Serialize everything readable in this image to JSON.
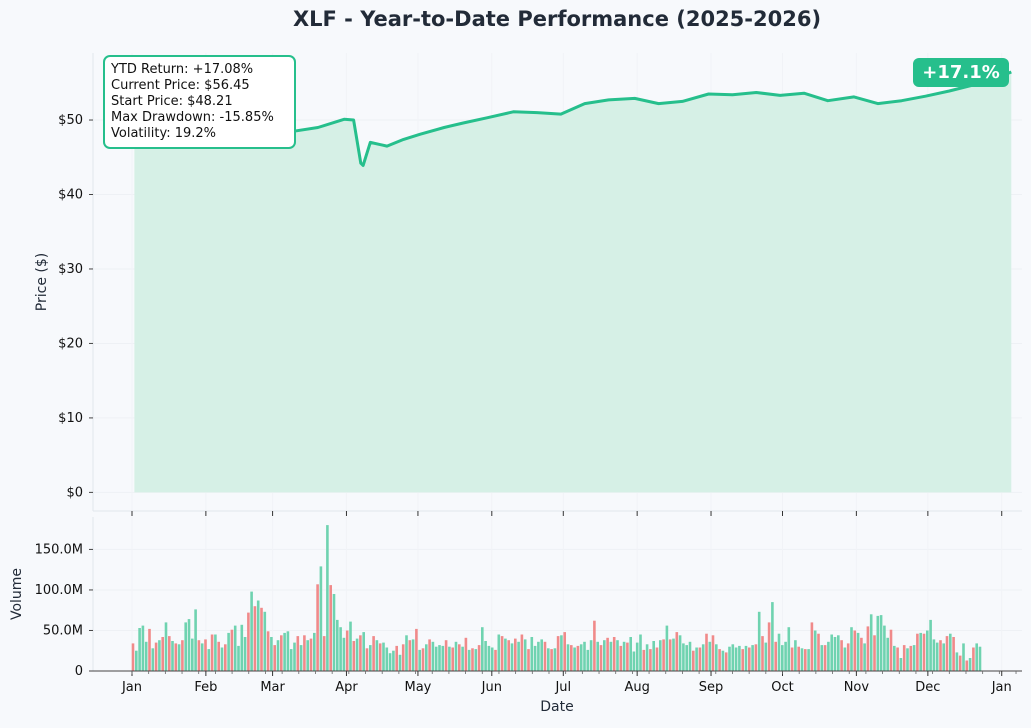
{
  "title": "XLF - Year-to-Date Performance (2025-2026)",
  "badge": "+17.1%",
  "stats": {
    "ytd_return": "YTD Return: +17.08%",
    "current_price": "Current Price: $56.45",
    "start_price": "Start Price: $48.21",
    "max_drawdown": "Max Drawdown: -15.85%",
    "volatility": "Volatility: 19.2%"
  },
  "colors": {
    "line": "#26bf8c",
    "fill": "#d6f0e6",
    "up": "#6fd3b0",
    "down": "#f08a8a",
    "text": "#222b38",
    "background": "#f7f9fc"
  },
  "chart_data": [
    {
      "type": "area",
      "title": "XLF - Year-to-Date Performance (2025-2026)",
      "xlabel": "",
      "ylabel": "Price ($)",
      "ylim": [
        -2.5,
        59
      ],
      "yticks": [
        0,
        10,
        20,
        30,
        40,
        50
      ],
      "ytick_labels": [
        "$0",
        "$10",
        "$20",
        "$30",
        "$40",
        "$50"
      ],
      "grid": true,
      "series": [
        {
          "x": [
            "2025-01-02",
            "2025-01-10",
            "2025-01-20",
            "2025-01-31",
            "2025-02-10",
            "2025-02-20",
            "2025-02-28",
            "2025-03-10",
            "2025-03-20",
            "2025-03-31",
            "2025-04-04",
            "2025-04-07",
            "2025-04-08",
            "2025-04-11",
            "2025-04-18",
            "2025-04-25",
            "2025-05-02",
            "2025-05-12",
            "2025-05-20",
            "2025-05-30",
            "2025-06-10",
            "2025-06-20",
            "2025-06-30",
            "2025-07-10",
            "2025-07-20",
            "2025-07-31",
            "2025-08-10",
            "2025-08-20",
            "2025-08-31",
            "2025-09-10",
            "2025-09-20",
            "2025-09-30",
            "2025-10-10",
            "2025-10-20",
            "2025-10-31",
            "2025-11-10",
            "2025-11-20",
            "2025-11-30",
            "2025-12-10",
            "2025-12-20",
            "2025-12-31",
            "2026-01-05"
          ],
          "values": [
            48.2,
            49.0,
            50.5,
            51.2,
            51.8,
            50.6,
            51.9,
            48.5,
            49.0,
            50.1,
            50.0,
            44.2,
            43.9,
            47.0,
            46.5,
            47.4,
            48.1,
            49.0,
            49.6,
            50.3,
            51.1,
            51.0,
            50.8,
            52.2,
            52.7,
            52.9,
            52.2,
            52.5,
            53.5,
            53.4,
            53.7,
            53.3,
            53.6,
            52.6,
            53.1,
            52.2,
            52.6,
            53.2,
            53.9,
            54.7,
            55.8,
            56.45
          ]
        }
      ]
    },
    {
      "type": "bar",
      "xlabel": "Date",
      "ylabel": "Volume",
      "ylim": [
        0,
        190
      ],
      "yticks": [
        0,
        50,
        100,
        150
      ],
      "ytick_labels": [
        "0",
        "50.0M",
        "100.0M",
        "150.0M"
      ],
      "x_ticks": [
        "Jan",
        "Feb",
        "Mar",
        "Apr",
        "May",
        "Jun",
        "Jul",
        "Aug",
        "Sep",
        "Oct",
        "Nov",
        "Dec",
        "Jan"
      ],
      "values_millions": [
        34,
        25,
        53,
        56,
        36,
        52,
        28,
        35,
        38,
        42,
        60,
        43,
        37,
        34,
        33,
        38,
        60,
        64,
        40,
        76,
        38,
        34,
        39,
        27,
        45,
        45,
        36,
        29,
        33,
        47,
        51,
        56,
        31,
        57,
        42,
        72,
        98,
        80,
        87,
        78,
        73,
        49,
        42,
        32,
        38,
        44,
        47,
        49,
        27,
        35,
        43,
        32,
        44,
        38,
        40,
        47,
        107,
        129,
        43,
        180,
        106,
        95,
        63,
        54,
        41,
        50,
        61,
        37,
        40,
        44,
        48,
        28,
        32,
        43,
        38,
        34,
        35,
        29,
        22,
        25,
        31,
        20,
        33,
        44,
        38,
        39,
        52,
        26,
        28,
        33,
        39,
        36,
        30,
        32,
        31,
        38,
        30,
        29,
        36,
        33,
        30,
        41,
        26,
        28,
        27,
        32,
        54,
        37,
        31,
        29,
        26,
        45,
        43,
        40,
        38,
        34,
        40,
        36,
        45,
        39,
        27,
        42,
        31,
        36,
        39,
        36,
        28,
        27,
        28,
        43,
        44,
        48,
        33,
        32,
        29,
        31,
        33,
        36,
        26,
        38,
        62,
        36,
        32,
        38,
        41,
        36,
        42,
        38,
        31,
        36,
        35,
        42,
        24,
        35,
        45,
        26,
        33,
        27,
        37,
        29,
        38,
        39,
        56,
        39,
        40,
        48,
        44,
        34,
        32,
        36,
        25,
        29,
        29,
        33,
        46,
        36,
        44,
        33,
        27,
        25,
        23,
        30,
        33,
        29,
        31,
        27,
        31,
        29,
        32,
        33,
        73,
        43,
        35,
        60,
        85,
        36,
        46,
        32,
        36,
        54,
        29,
        38,
        30,
        28,
        27,
        27,
        60,
        50,
        46,
        32,
        32,
        36,
        45,
        42,
        44,
        38,
        29,
        34,
        54,
        50,
        47,
        41,
        34,
        55,
        70,
        44,
        68,
        69,
        56,
        41,
        51,
        31,
        29,
        16,
        32,
        28,
        31,
        32,
        46,
        47,
        46,
        50,
        63,
        39,
        35,
        38,
        34,
        43,
        46,
        42,
        23,
        19,
        34,
        13,
        16,
        29,
        34,
        30
      ]
    }
  ]
}
